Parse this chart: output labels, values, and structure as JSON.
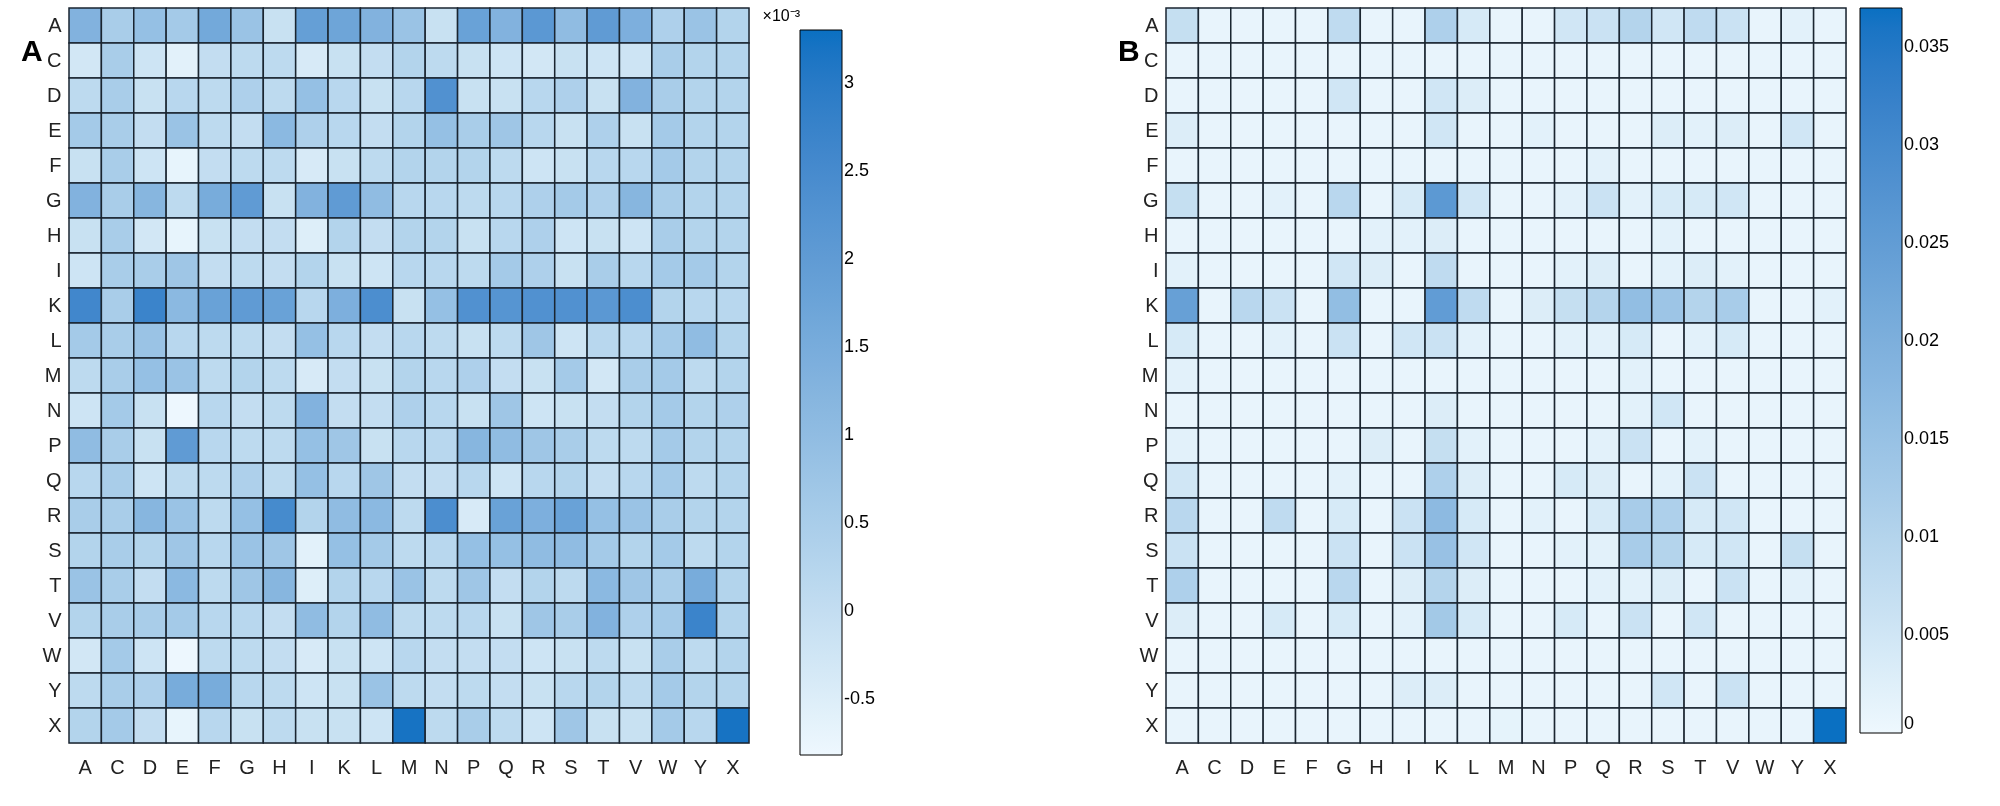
{
  "chart_data": [
    {
      "type": "heatmap",
      "title": "A",
      "clabel": "×10⁻³",
      "categories": [
        "A",
        "C",
        "D",
        "E",
        "F",
        "G",
        "H",
        "I",
        "K",
        "L",
        "M",
        "N",
        "P",
        "Q",
        "R",
        "S",
        "T",
        "V",
        "W",
        "Y",
        "X"
      ],
      "y_categories": [
        "A",
        "C",
        "D",
        "E",
        "F",
        "G",
        "H",
        "I",
        "K",
        "L",
        "M",
        "N",
        "P",
        "Q",
        "R",
        "S",
        "T",
        "V",
        "W",
        "Y",
        "X"
      ],
      "cells": [
        [
          1.3,
          0.5,
          0.9,
          0.6,
          1.6,
          0.8,
          -0.1,
          1.9,
          1.7,
          1.3,
          0.8,
          -0.1,
          1.8,
          1.3,
          2.1,
          1.0,
          2.0,
          1.4,
          0.4,
          0.8,
          0.3
        ],
        [
          -0.3,
          0.5,
          -0.2,
          -0.6,
          0.0,
          0.1,
          0.1,
          -0.4,
          -0.1,
          0.0,
          0.3,
          0.1,
          -0.1,
          -0.2,
          -0.3,
          -0.1,
          -0.2,
          -0.2,
          0.5,
          0.3,
          0.3
        ],
        [
          0.1,
          0.5,
          -0.1,
          0.2,
          0.1,
          0.4,
          0.1,
          0.9,
          0.2,
          -0.1,
          0.2,
          2.3,
          -0.1,
          -0.1,
          0.2,
          0.4,
          -0.1,
          1.3,
          0.5,
          0.3,
          0.3
        ],
        [
          0.6,
          0.5,
          0.0,
          0.8,
          0.1,
          0.0,
          1.1,
          0.4,
          0.2,
          0.0,
          0.3,
          0.9,
          0.5,
          0.7,
          0.2,
          -0.1,
          0.4,
          -0.1,
          0.6,
          0.3,
          0.3
        ],
        [
          -0.1,
          0.5,
          -0.2,
          -0.7,
          0.0,
          0.1,
          0.1,
          -0.4,
          -0.1,
          0.1,
          0.3,
          0.3,
          0.3,
          0.1,
          -0.2,
          -0.1,
          0.2,
          0.2,
          0.6,
          0.3,
          0.3
        ],
        [
          1.3,
          0.5,
          1.2,
          0.1,
          1.5,
          2.0,
          -0.1,
          1.3,
          2.0,
          1.0,
          0.2,
          0.2,
          0.1,
          0.2,
          0.4,
          0.6,
          0.4,
          1.2,
          0.5,
          0.3,
          0.3
        ],
        [
          -0.1,
          0.5,
          -0.3,
          -0.7,
          -0.1,
          0.0,
          0.0,
          -0.5,
          0.3,
          0.0,
          0.3,
          0.3,
          -0.1,
          0.2,
          0.4,
          -0.2,
          -0.1,
          -0.2,
          0.5,
          0.3,
          0.3
        ],
        [
          -0.2,
          0.5,
          0.5,
          0.7,
          0.0,
          0.1,
          0.0,
          0.3,
          -0.1,
          -0.2,
          0.2,
          0.2,
          0.1,
          0.6,
          0.4,
          -0.1,
          0.5,
          0.2,
          0.6,
          0.6,
          0.3
        ],
        [
          2.6,
          0.5,
          2.7,
          1.1,
          1.8,
          2.0,
          1.8,
          0.2,
          1.4,
          2.4,
          -0.1,
          0.9,
          2.3,
          2.2,
          2.3,
          2.3,
          2.1,
          2.4,
          0.3,
          0.2,
          0.2
        ],
        [
          0.6,
          0.5,
          0.8,
          0.2,
          0.1,
          0.1,
          0.0,
          0.9,
          0.2,
          0.0,
          0.2,
          0.1,
          -0.1,
          0.1,
          0.7,
          -0.2,
          0.2,
          0.2,
          0.6,
          1.0,
          0.3
        ],
        [
          0.1,
          0.5,
          0.9,
          0.8,
          0.1,
          0.3,
          0.1,
          -0.4,
          0.0,
          -0.1,
          0.3,
          0.2,
          0.4,
          0.0,
          -0.1,
          0.6,
          -0.3,
          0.5,
          0.6,
          0.1,
          0.3
        ],
        [
          -0.2,
          0.6,
          -0.1,
          -0.8,
          0.2,
          0.0,
          0.1,
          1.3,
          0.0,
          0.0,
          0.4,
          0.2,
          -0.1,
          0.7,
          -0.2,
          -0.1,
          0.0,
          0.3,
          0.6,
          0.3,
          0.4
        ],
        [
          1.0,
          0.5,
          -0.1,
          2.0,
          0.2,
          0.1,
          0.1,
          0.9,
          0.7,
          -0.1,
          0.2,
          0.2,
          1.2,
          1.0,
          0.7,
          0.5,
          0.1,
          0.1,
          0.6,
          0.3,
          0.3
        ],
        [
          0.2,
          0.5,
          -0.2,
          0.1,
          0.1,
          0.4,
          0.1,
          0.9,
          0.2,
          0.7,
          0.0,
          0.0,
          0.2,
          -0.2,
          0.2,
          0.3,
          0.0,
          0.2,
          0.6,
          0.1,
          0.3
        ],
        [
          0.5,
          0.5,
          1.2,
          0.8,
          0.1,
          0.9,
          2.5,
          0.3,
          1.0,
          1.1,
          0.1,
          2.4,
          -0.4,
          1.8,
          1.4,
          1.8,
          0.9,
          0.8,
          0.5,
          0.3,
          0.3
        ],
        [
          0.3,
          0.5,
          0.3,
          0.7,
          0.2,
          0.8,
          0.7,
          -0.6,
          0.9,
          0.6,
          0.1,
          0.2,
          0.9,
          0.9,
          1.0,
          1.0,
          0.6,
          0.3,
          0.6,
          0.1,
          0.3
        ],
        [
          0.8,
          0.5,
          0.0,
          1.1,
          0.1,
          0.7,
          1.2,
          -0.5,
          0.3,
          0.2,
          0.8,
          0.1,
          0.7,
          0.0,
          0.3,
          0.1,
          1.1,
          0.7,
          0.5,
          1.5,
          0.3
        ],
        [
          0.3,
          0.5,
          0.5,
          0.6,
          0.2,
          0.2,
          0.0,
          1.0,
          0.3,
          1.0,
          0.1,
          0.1,
          0.2,
          -0.1,
          0.7,
          0.5,
          1.3,
          0.4,
          0.6,
          2.7,
          0.3
        ],
        [
          -0.3,
          0.6,
          -0.2,
          -0.8,
          0.1,
          0.1,
          0.0,
          -0.4,
          -0.1,
          -0.2,
          0.2,
          0.0,
          0.0,
          0.0,
          -0.2,
          -0.1,
          0.1,
          -0.1,
          0.5,
          0.1,
          0.3
        ],
        [
          0.1,
          0.5,
          0.4,
          1.5,
          1.5,
          0.2,
          0.1,
          -0.2,
          -0.1,
          0.8,
          0.1,
          0.0,
          0.1,
          0.0,
          -0.1,
          0.2,
          0.3,
          0.1,
          0.6,
          0.3,
          0.3
        ],
        [
          0.3,
          0.6,
          0.0,
          -0.7,
          0.2,
          -0.1,
          0.1,
          -0.1,
          -0.1,
          -0.2,
          3.2,
          0.1,
          0.5,
          0.1,
          -0.2,
          0.7,
          -0.1,
          -0.1,
          0.6,
          0.2,
          3.2
        ]
      ],
      "clim": [
        -0.82,
        3.3
      ],
      "cticks": [
        -0.5,
        0,
        0.5,
        1,
        1.5,
        2,
        2.5,
        3
      ]
    },
    {
      "type": "heatmap",
      "title": "B",
      "categories": [
        "A",
        "C",
        "D",
        "E",
        "F",
        "G",
        "H",
        "I",
        "K",
        "L",
        "M",
        "N",
        "P",
        "Q",
        "R",
        "S",
        "T",
        "V",
        "W",
        "Y",
        "X"
      ],
      "y_categories": [
        "A",
        "C",
        "D",
        "E",
        "F",
        "G",
        "H",
        "I",
        "K",
        "L",
        "M",
        "N",
        "P",
        "Q",
        "R",
        "S",
        "T",
        "V",
        "W",
        "Y",
        "X"
      ],
      "cells": [
        [
          0.007,
          0.001,
          0.001,
          0.001,
          0.001,
          0.008,
          0.001,
          0.001,
          0.011,
          0.004,
          0.001,
          0.001,
          0.005,
          0.006,
          0.01,
          0.005,
          0.008,
          0.006,
          0.001,
          0.002,
          0.001
        ],
        [
          0.001,
          0.001,
          0.001,
          0.001,
          0.001,
          0.001,
          0.001,
          0.001,
          0.001,
          0.001,
          0.001,
          0.001,
          0.001,
          0.001,
          0.001,
          0.001,
          0.001,
          0.001,
          0.001,
          0.001,
          0.001
        ],
        [
          0.001,
          0.001,
          0.001,
          0.001,
          0.001,
          0.005,
          0.001,
          0.001,
          0.005,
          0.003,
          0.001,
          0.001,
          0.001,
          0.001,
          0.001,
          0.001,
          0.001,
          0.001,
          0.001,
          0.001,
          0.001
        ],
        [
          0.003,
          0.001,
          0.001,
          0.001,
          0.001,
          0.001,
          0.001,
          0.001,
          0.005,
          0.001,
          0.001,
          0.002,
          0.001,
          0.001,
          0.001,
          0.003,
          0.002,
          0.003,
          0.001,
          0.005,
          0.001
        ],
        [
          0.001,
          0.001,
          0.001,
          0.001,
          0.001,
          0.001,
          0.001,
          0.001,
          0.001,
          0.001,
          0.001,
          0.001,
          0.001,
          0.002,
          0.001,
          0.001,
          0.001,
          0.001,
          0.001,
          0.001,
          0.001
        ],
        [
          0.007,
          0.001,
          0.001,
          0.002,
          0.001,
          0.009,
          0.001,
          0.004,
          0.026,
          0.005,
          0.001,
          0.001,
          0.002,
          0.006,
          0.002,
          0.004,
          0.004,
          0.005,
          0.001,
          0.001,
          0.001
        ],
        [
          0.001,
          0.001,
          0.001,
          0.001,
          0.001,
          0.001,
          0.002,
          0.002,
          0.003,
          0.001,
          0.001,
          0.001,
          0.001,
          0.001,
          0.001,
          0.002,
          0.001,
          0.001,
          0.001,
          0.001,
          0.001
        ],
        [
          0.002,
          0.001,
          0.001,
          0.001,
          0.001,
          0.005,
          0.003,
          0.001,
          0.008,
          0.001,
          0.001,
          0.001,
          0.002,
          0.003,
          0.001,
          0.002,
          0.003,
          0.002,
          0.001,
          0.001,
          0.001
        ],
        [
          0.024,
          0.001,
          0.009,
          0.006,
          0.001,
          0.016,
          0.001,
          0.001,
          0.025,
          0.008,
          0.001,
          0.003,
          0.007,
          0.01,
          0.016,
          0.014,
          0.01,
          0.012,
          0.001,
          0.001,
          0.002
        ],
        [
          0.004,
          0.001,
          0.001,
          0.002,
          0.001,
          0.006,
          0.001,
          0.005,
          0.006,
          0.002,
          0.001,
          0.001,
          0.002,
          0.002,
          0.004,
          0.001,
          0.002,
          0.004,
          0.001,
          0.001,
          0.001
        ],
        [
          0.002,
          0.001,
          0.001,
          0.001,
          0.001,
          0.001,
          0.001,
          0.001,
          0.001,
          0.001,
          0.001,
          0.001,
          0.001,
          0.001,
          0.002,
          0.001,
          0.001,
          0.001,
          0.001,
          0.001,
          0.001
        ],
        [
          0.001,
          0.001,
          0.001,
          0.001,
          0.001,
          0.001,
          0.001,
          0.001,
          0.003,
          0.001,
          0.001,
          0.001,
          0.001,
          0.001,
          0.002,
          0.005,
          0.001,
          0.001,
          0.001,
          0.001,
          0.001
        ],
        [
          0.002,
          0.001,
          0.001,
          0.001,
          0.001,
          0.001,
          0.003,
          0.001,
          0.007,
          0.002,
          0.001,
          0.001,
          0.001,
          0.002,
          0.006,
          0.001,
          0.002,
          0.001,
          0.001,
          0.001,
          0.001
        ],
        [
          0.005,
          0.001,
          0.001,
          0.001,
          0.001,
          0.002,
          0.001,
          0.001,
          0.011,
          0.003,
          0.001,
          0.001,
          0.004,
          0.003,
          0.001,
          0.002,
          0.006,
          0.001,
          0.001,
          0.001,
          0.001
        ],
        [
          0.009,
          0.001,
          0.001,
          0.008,
          0.001,
          0.004,
          0.001,
          0.006,
          0.017,
          0.004,
          0.001,
          0.002,
          0.001,
          0.004,
          0.012,
          0.011,
          0.004,
          0.005,
          0.001,
          0.001,
          0.001
        ],
        [
          0.006,
          0.001,
          0.001,
          0.001,
          0.001,
          0.006,
          0.001,
          0.006,
          0.015,
          0.005,
          0.001,
          0.001,
          0.002,
          0.002,
          0.012,
          0.01,
          0.004,
          0.005,
          0.001,
          0.007,
          0.001
        ],
        [
          0.011,
          0.001,
          0.001,
          0.001,
          0.001,
          0.009,
          0.001,
          0.003,
          0.01,
          0.003,
          0.001,
          0.001,
          0.001,
          0.002,
          0.002,
          0.003,
          0.001,
          0.006,
          0.001,
          0.002,
          0.001
        ],
        [
          0.003,
          0.001,
          0.001,
          0.004,
          0.001,
          0.004,
          0.001,
          0.002,
          0.013,
          0.004,
          0.001,
          0.001,
          0.004,
          0.001,
          0.006,
          0.001,
          0.005,
          0.001,
          0.001,
          0.001,
          0.001
        ],
        [
          0.001,
          0.001,
          0.001,
          0.001,
          0.001,
          0.001,
          0.001,
          0.001,
          0.001,
          0.001,
          0.001,
          0.001,
          0.001,
          0.001,
          0.001,
          0.001,
          0.001,
          0.001,
          0.001,
          0.001,
          0.001
        ],
        [
          0.001,
          0.001,
          0.001,
          0.001,
          0.001,
          0.001,
          0.001,
          0.003,
          0.003,
          0.001,
          0.001,
          0.001,
          0.001,
          0.001,
          0.001,
          0.005,
          0.001,
          0.006,
          0.001,
          0.001,
          0.001
        ],
        [
          0.001,
          0.001,
          0.001,
          0.001,
          0.001,
          0.001,
          0.001,
          0.001,
          0.001,
          0.001,
          0.0015,
          0.001,
          0.001,
          0.001,
          0.001,
          0.001,
          0.001,
          0.001,
          0.001,
          0.001,
          0.037
        ]
      ],
      "clim": [
        0,
        0.037
      ],
      "cticks": [
        0,
        0.005,
        0.01,
        0.015,
        0.02,
        0.025,
        0.03,
        0.035
      ]
    }
  ]
}
